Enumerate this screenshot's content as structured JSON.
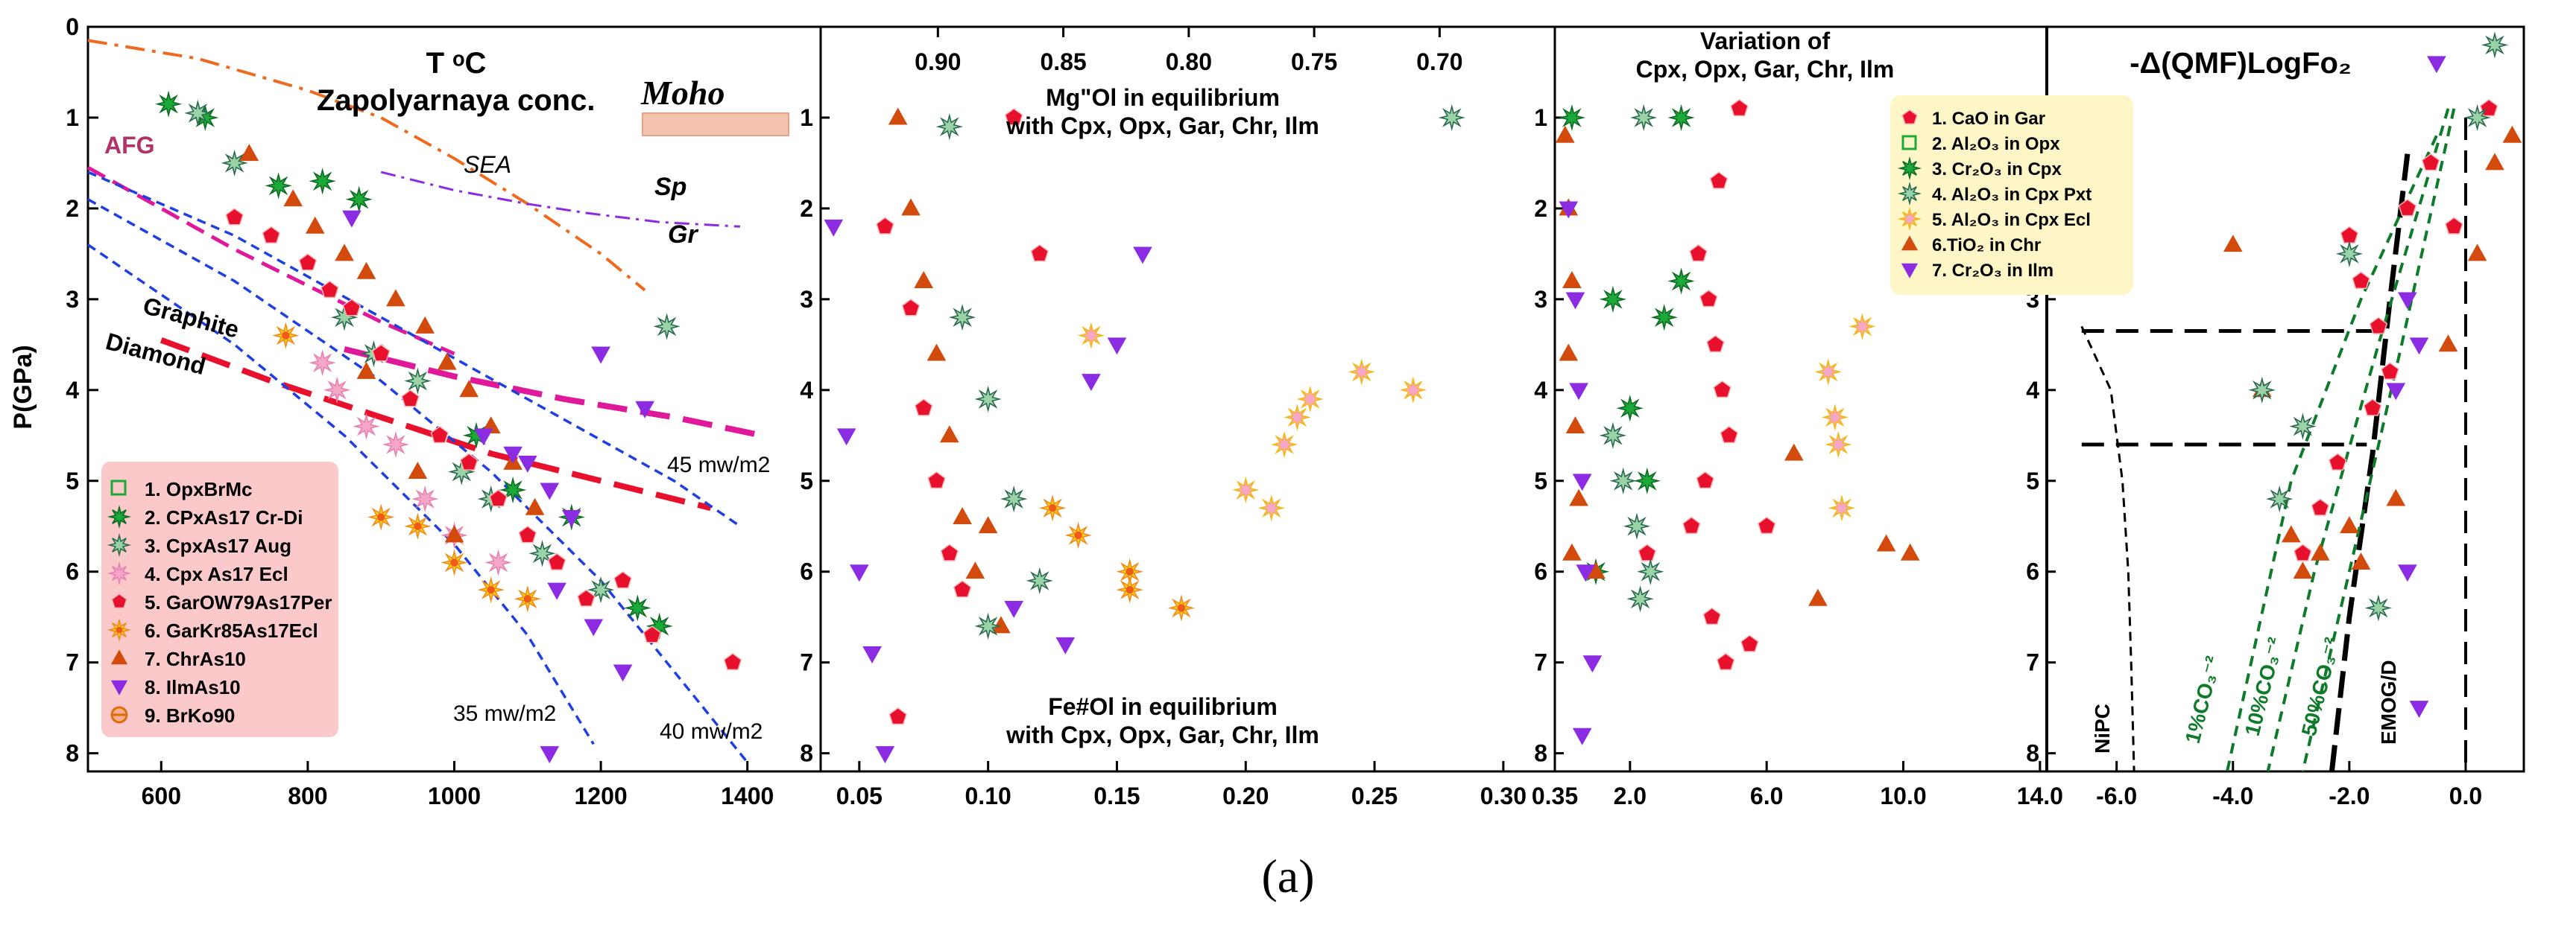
{
  "figure_caption": "(a)",
  "y_axis_label": "P(GPa)",
  "chart_data": [
    {
      "type": "scatter",
      "panel": "p1",
      "xlim": [
        500,
        1500
      ],
      "ylim": [
        0,
        8.2
      ],
      "xticks": [
        600,
        800,
        1000,
        1200,
        1400
      ],
      "yticks": [
        0,
        1,
        2,
        3,
        4,
        5,
        6,
        7,
        8
      ],
      "labels": {
        "title": "T ᵒC",
        "subtitle": "Zapolyarnaya conc.",
        "moho": "Moho",
        "sea": "SEA",
        "sp": "Sp",
        "gr": "Gr",
        "afg": "AFG",
        "graphite": "Graphite",
        "diamond": "Diamond",
        "g45": "45 mw/m2",
        "g40": "40 mw/m2",
        "g35": "35 mw/m2"
      },
      "legend": [
        "1. OpxBrMc",
        "2. CPxAs17 Cr-Di",
        "3. CpxAs17 Aug",
        "4. Cpx As17 Ecl",
        "5. GarOW79As17Per",
        "6. GarKr85As17Ecl",
        "7. ChrAs10",
        "8. IlmAs10",
        "9. BrKo90"
      ],
      "series": [
        {
          "name": "2. CPxAs17 Cr-Di",
          "points": [
            [
              610,
              0.85
            ],
            [
              660,
              1
            ],
            [
              760,
              1.75
            ],
            [
              820,
              1.7
            ],
            [
              870,
              1.9
            ],
            [
              1030,
              4.5
            ],
            [
              1080,
              5.1
            ],
            [
              1160,
              5.4
            ],
            [
              1280,
              6.6
            ],
            [
              1250,
              6.4
            ]
          ]
        },
        {
          "name": "3. CpxAs17 Aug",
          "points": [
            [
              650,
              0.95
            ],
            [
              700,
              1.5
            ],
            [
              850,
              3.2
            ],
            [
              890,
              3.6
            ],
            [
              950,
              3.9
            ],
            [
              1010,
              4.9
            ],
            [
              1050,
              5.2
            ],
            [
              1120,
              5.8
            ],
            [
              1200,
              6.2
            ],
            [
              1290,
              3.3
            ]
          ]
        },
        {
          "name": "4. Cpx As17 Ecl",
          "points": [
            [
              820,
              3.7
            ],
            [
              840,
              4
            ],
            [
              880,
              4.4
            ],
            [
              920,
              4.6
            ],
            [
              960,
              5.2
            ],
            [
              1000,
              5.6
            ],
            [
              1060,
              5.9
            ]
          ]
        },
        {
          "name": "5. GarOW79As17Per",
          "points": [
            [
              700,
              2.1
            ],
            [
              750,
              2.3
            ],
            [
              800,
              2.6
            ],
            [
              830,
              2.9
            ],
            [
              860,
              3.1
            ],
            [
              900,
              3.6
            ],
            [
              940,
              4.1
            ],
            [
              980,
              4.5
            ],
            [
              1020,
              4.8
            ],
            [
              1060,
              5.2
            ],
            [
              1100,
              5.6
            ],
            [
              1140,
              5.9
            ],
            [
              1180,
              6.3
            ],
            [
              1230,
              6.1
            ],
            [
              1270,
              6.7
            ],
            [
              1380,
              7
            ]
          ]
        },
        {
          "name": "6. GarKr85As17Ecl",
          "points": [
            [
              770,
              3.4
            ],
            [
              900,
              5.4
            ],
            [
              950,
              5.5
            ],
            [
              1000,
              5.9
            ],
            [
              1050,
              6.2
            ],
            [
              1100,
              6.3
            ]
          ]
        },
        {
          "name": "7. ChrAs10",
          "points": [
            [
              720,
              1.4
            ],
            [
              780,
              1.9
            ],
            [
              810,
              2.2
            ],
            [
              850,
              2.5
            ],
            [
              880,
              2.7
            ],
            [
              920,
              3.0
            ],
            [
              960,
              3.3
            ],
            [
              990,
              3.7
            ],
            [
              1020,
              4.0
            ],
            [
              1050,
              4.4
            ],
            [
              1080,
              4.8
            ],
            [
              1110,
              5.3
            ],
            [
              1000,
              5.6
            ],
            [
              950,
              4.9
            ],
            [
              880,
              3.8
            ]
          ]
        },
        {
          "name": "8. IlmAs10",
          "points": [
            [
              860,
              2.1
            ],
            [
              1040,
              4.5
            ],
            [
              1080,
              4.7
            ],
            [
              1100,
              4.8
            ],
            [
              1130,
              5.1
            ],
            [
              1160,
              5.4
            ],
            [
              1140,
              6.2
            ],
            [
              1190,
              6.6
            ],
            [
              1230,
              7.1
            ],
            [
              1130,
              8.0
            ],
            [
              1200,
              3.6
            ],
            [
              1260,
              4.2
            ]
          ]
        }
      ]
    },
    {
      "type": "scatter",
      "panel": "p2",
      "xlim": [
        0.035,
        0.32
      ],
      "ylim": [
        0,
        8.2
      ],
      "xticks": [
        0.05,
        0.1,
        0.15,
        0.2,
        0.25,
        0.3
      ],
      "top_xticks": [
        0.9,
        0.85,
        0.8,
        0.75,
        0.7
      ],
      "yticks": [
        1,
        2,
        3,
        4,
        5,
        6,
        7,
        8
      ],
      "labels": {
        "top_line1": "Mg\"Ol in equilibrium",
        "top_line2": "with Cpx, Opx, Gar,  Chr, Ilm",
        "bottom_line1": "Fe#Ol in equilibrium",
        "bottom_line2": "with Cpx, Opx, Gar, Chr, Ilm"
      },
      "series": [
        {
          "name": "Gar",
          "points": [
            [
              0.06,
              2.2
            ],
            [
              0.07,
              3.1
            ],
            [
              0.075,
              4.2
            ],
            [
              0.08,
              5.0
            ],
            [
              0.085,
              5.8
            ],
            [
              0.09,
              6.2
            ],
            [
              0.11,
              1.0
            ],
            [
              0.12,
              2.5
            ],
            [
              0.065,
              7.6
            ]
          ]
        },
        {
          "name": "Chr",
          "points": [
            [
              0.065,
              1.0
            ],
            [
              0.07,
              2.0
            ],
            [
              0.075,
              2.8
            ],
            [
              0.08,
              3.6
            ],
            [
              0.085,
              4.5
            ],
            [
              0.09,
              5.4
            ],
            [
              0.095,
              6.0
            ],
            [
              0.1,
              5.5
            ],
            [
              0.105,
              6.6
            ]
          ]
        },
        {
          "name": "Cpx",
          "points": [
            [
              0.085,
              1.1
            ],
            [
              0.09,
              3.2
            ],
            [
              0.1,
              4.1
            ],
            [
              0.11,
              5.2
            ],
            [
              0.12,
              6.1
            ],
            [
              0.1,
              6.6
            ],
            [
              0.28,
              1.0
            ]
          ]
        },
        {
          "name": "Ecl",
          "points": [
            [
              0.2,
              5.1
            ],
            [
              0.21,
              5.3
            ],
            [
              0.215,
              4.6
            ],
            [
              0.22,
              4.3
            ],
            [
              0.225,
              4.1
            ],
            [
              0.245,
              3.8
            ],
            [
              0.265,
              4.0
            ],
            [
              0.14,
              3.4
            ]
          ]
        },
        {
          "name": "Ilm",
          "points": [
            [
              0.04,
              2.2
            ],
            [
              0.045,
              4.5
            ],
            [
              0.05,
              6.0
            ],
            [
              0.055,
              6.9
            ],
            [
              0.06,
              8.0
            ],
            [
              0.14,
              3.9
            ],
            [
              0.15,
              3.5
            ],
            [
              0.16,
              2.5
            ],
            [
              0.11,
              6.4
            ],
            [
              0.13,
              6.8
            ]
          ]
        },
        {
          "name": "GarEcl",
          "points": [
            [
              0.125,
              5.3
            ],
            [
              0.135,
              5.6
            ],
            [
              0.155,
              6.0
            ],
            [
              0.155,
              6.2
            ],
            [
              0.175,
              6.4
            ]
          ]
        }
      ]
    },
    {
      "type": "scatter",
      "panel": "p3",
      "xlim": [
        -0.2,
        14.2
      ],
      "ylim": [
        0,
        8.2
      ],
      "xticks": [
        2.0,
        6.0,
        10.0,
        14.0
      ],
      "left_tick": "0.35",
      "yticks": [
        1,
        2,
        3,
        4,
        5,
        6,
        7,
        8
      ],
      "labels": {
        "title_line1": "Variation of",
        "title_line2": "Cpx, Opx, Gar,  Chr, Ilm"
      },
      "legend": [
        "1. CaO in Gar",
        "2. Al₂O₃ in Opx",
        "3. Cr₂O₃ in Cpx",
        "4. Al₂O₃ in Cpx Pxt",
        "5. Al₂O₃ in Cpx Ecl",
        "6.TiO₂ in Chr",
        "7. Cr₂O₃ in Ilm"
      ],
      "series": [
        {
          "name": "1. CaO in Gar",
          "points": [
            [
              4.0,
              2.5
            ],
            [
              4.3,
              3.0
            ],
            [
              4.5,
              3.5
            ],
            [
              4.7,
              4.0
            ],
            [
              4.9,
              4.5
            ],
            [
              4.2,
              5.0
            ],
            [
              3.8,
              5.5
            ],
            [
              4.6,
              1.7
            ],
            [
              4.4,
              6.5
            ],
            [
              4.8,
              7.0
            ],
            [
              6.0,
              5.5
            ],
            [
              5.5,
              6.8
            ],
            [
              5.2,
              0.9
            ],
            [
              2.5,
              5.8
            ]
          ]
        },
        {
          "name": "3. Cr₂O₃ in Cpx",
          "points": [
            [
              0.3,
              1.0
            ],
            [
              1.5,
              3.0
            ],
            [
              2.0,
              4.2
            ],
            [
              2.5,
              5.0
            ],
            [
              3.0,
              3.2
            ],
            [
              3.5,
              2.8
            ],
            [
              1.0,
              6.0
            ],
            [
              3.5,
              1.0
            ]
          ]
        },
        {
          "name": "4. Al₂O₃ in Cpx Pxt",
          "points": [
            [
              1.5,
              4.5
            ],
            [
              1.8,
              5.0
            ],
            [
              2.2,
              5.5
            ],
            [
              2.6,
              6.0
            ],
            [
              2.4,
              1.0
            ],
            [
              2.3,
              6.3
            ]
          ]
        },
        {
          "name": "5. Al₂O₃ in Cpx Ecl",
          "points": [
            [
              7.8,
              3.8
            ],
            [
              8.0,
              4.3
            ],
            [
              8.1,
              4.6
            ],
            [
              8.2,
              5.3
            ],
            [
              8.8,
              3.3
            ]
          ]
        },
        {
          "name": "6.TiO₂ in Chr",
          "points": [
            [
              0.1,
              1.2
            ],
            [
              0.2,
              2.0
            ],
            [
              0.3,
              2.8
            ],
            [
              0.2,
              3.6
            ],
            [
              0.4,
              4.4
            ],
            [
              0.5,
              5.2
            ],
            [
              0.3,
              5.8
            ],
            [
              1.0,
              6.0
            ],
            [
              6.8,
              4.7
            ],
            [
              9.5,
              5.7
            ],
            [
              10.2,
              5.8
            ],
            [
              7.5,
              6.3
            ]
          ]
        },
        {
          "name": "7. Cr₂O₃ in Ilm",
          "points": [
            [
              0.2,
              2.0
            ],
            [
              0.4,
              3.0
            ],
            [
              0.5,
              4.0
            ],
            [
              0.6,
              5.0
            ],
            [
              0.7,
              6.0
            ],
            [
              0.9,
              7.0
            ],
            [
              0.6,
              7.8
            ]
          ]
        }
      ]
    },
    {
      "type": "scatter",
      "panel": "p4",
      "xlim": [
        -7.2,
        1.0
      ],
      "ylim": [
        0,
        8.2
      ],
      "xticks": [
        -6.0,
        -4.0,
        -2.0,
        0.0
      ],
      "yticks": [
        1,
        2,
        3,
        4,
        5,
        6,
        7,
        8
      ],
      "labels": {
        "title": "-Δ(QMF)LogFo₂",
        "nipc": "NiPC",
        "co1": "1%CO₃⁻²",
        "co10": "10%CO₃⁻²",
        "co50": "50%CO₃⁻²",
        "emog": "EMOG/D"
      },
      "series": [
        {
          "name": "Gar",
          "points": [
            [
              -2.0,
              2.3
            ],
            [
              -1.8,
              2.8
            ],
            [
              -1.5,
              3.3
            ],
            [
              -1.3,
              3.8
            ],
            [
              -1.6,
              4.2
            ],
            [
              -2.2,
              4.8
            ],
            [
              -2.5,
              5.3
            ],
            [
              -2.8,
              5.8
            ],
            [
              -1.0,
              2.0
            ],
            [
              -0.6,
              1.5
            ],
            [
              -0.2,
              2.2
            ],
            [
              0.4,
              0.9
            ]
          ]
        },
        {
          "name": "Chr",
          "points": [
            [
              -2.0,
              5.5
            ],
            [
              -2.5,
              5.8
            ],
            [
              -3.0,
              5.6
            ],
            [
              -2.8,
              6.0
            ],
            [
              -1.8,
              5.9
            ],
            [
              -1.2,
              5.2
            ],
            [
              -0.3,
              3.5
            ],
            [
              0.2,
              2.5
            ],
            [
              0.5,
              1.5
            ],
            [
              -4.0,
              2.4
            ],
            [
              -3.5,
              4.0
            ],
            [
              0.8,
              1.2
            ]
          ]
        },
        {
          "name": "Cpx",
          "points": [
            [
              -3.5,
              4.0
            ],
            [
              -3.2,
              5.2
            ],
            [
              -2.8,
              4.4
            ],
            [
              -1.5,
              6.4
            ],
            [
              -2.0,
              2.5
            ],
            [
              0.5,
              0.2
            ],
            [
              0.2,
              1.0
            ]
          ]
        },
        {
          "name": "Ilm",
          "points": [
            [
              -1.0,
              3.0
            ],
            [
              -0.8,
              3.5
            ],
            [
              -1.2,
              4.0
            ],
            [
              -1.0,
              6.0
            ],
            [
              -0.8,
              7.5
            ],
            [
              -0.5,
              0.4
            ]
          ]
        }
      ]
    }
  ],
  "colors": {
    "gar": "#e8112d",
    "chr": "#d24a0c",
    "cpx_crdi": "#1ba93a",
    "cpx_aug": "#2b6a4e",
    "cpx_ecl": "#f6a7c9",
    "gar_ecl": "#ffd21c",
    "ilm": "#8b2be2",
    "orange_line": "#ee6a1f",
    "purple_line": "#8b2be2",
    "magenta_line": "#e0189a",
    "red_line": "#e8112d",
    "blue_line": "#1f3fe0",
    "green_line": "#0f7a2a",
    "legend_bg1": "#fbc9c9",
    "legend_bg3": "#fff6c7"
  },
  "icons": {
    "pentagon": "red-pentagon-icon",
    "star": "green-star-icon",
    "triangle": "orange-triangle-icon",
    "down_triangle": "purple-down-triangle-icon"
  }
}
